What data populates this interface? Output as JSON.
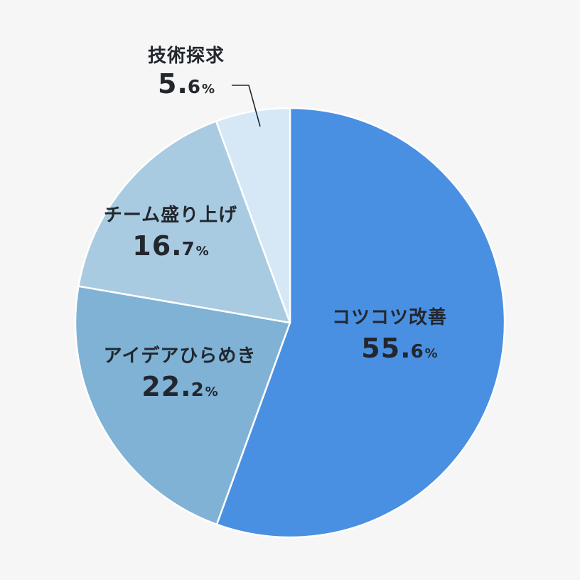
{
  "chart_data": {
    "type": "pie",
    "title": "",
    "start_angle_deg": 0,
    "direction": "clockwise",
    "categories": [
      "コツコツ改善",
      "アイデアひらめき",
      "チーム盛り上げ",
      "技術探求"
    ],
    "values": [
      55.6,
      22.2,
      16.7,
      5.6
    ],
    "colors": [
      "#4a90e2",
      "#7fb2d5",
      "#a9cbe2",
      "#d6e8f6"
    ],
    "slices": [
      {
        "label": "コツコツ改善",
        "value": 55.6,
        "int": "55",
        "dec": "6",
        "pct": "%",
        "color": "#4a90e2"
      },
      {
        "label": "アイデアひらめき",
        "value": 22.2,
        "int": "22",
        "dec": "2",
        "pct": "%",
        "color": "#7fb2d5"
      },
      {
        "label": "チーム盛り上げ",
        "value": 16.7,
        "int": "16",
        "dec": "7",
        "pct": "%",
        "color": "#a9cbe2"
      },
      {
        "label": "技術探求",
        "value": 5.6,
        "int": "5",
        "dec": "6",
        "pct": "%",
        "color": "#d6e8f6"
      }
    ],
    "legend": "none (labels on slices)",
    "leader_line_for": "技術探求"
  },
  "style": {
    "background": "#f6f6f6",
    "text_color": "#22272e",
    "slice_border": "#ffffff",
    "leader_line_color": "#22272e"
  }
}
